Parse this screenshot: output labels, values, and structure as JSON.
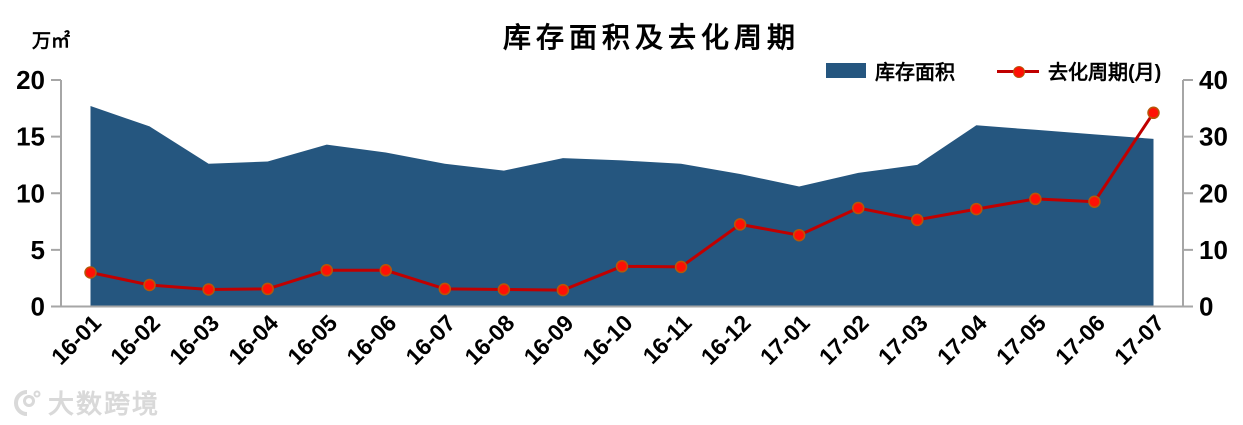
{
  "title": "库存面积及去化周期",
  "left_axis_unit": "万㎡",
  "legend": {
    "items": [
      {
        "label": "库存面积",
        "type": "area"
      },
      {
        "label": "去化周期(月)",
        "type": "line"
      }
    ]
  },
  "watermark": {
    "text": "大数跨境"
  },
  "colors": {
    "area": "#25567F",
    "line": "#C00000",
    "marker_fill": "#FF1005",
    "marker_stroke": "#B65708",
    "axis": "#A6A6A6",
    "watermark": "#D9D9D9"
  },
  "chart_data": {
    "type": "area+line combo",
    "title": "库存面积及去化周期",
    "categories": [
      "16-01",
      "16-02",
      "16-03",
      "16-04",
      "16-05",
      "16-06",
      "16-07",
      "16-08",
      "16-09",
      "16-10",
      "16-11",
      "16-12",
      "17-01",
      "17-02",
      "17-03",
      "17-04",
      "17-05",
      "17-06",
      "17-07"
    ],
    "series": [
      {
        "name": "库存面积",
        "type": "area",
        "axis": "left",
        "values": [
          17.7,
          15.9,
          12.6,
          12.8,
          14.3,
          13.6,
          12.6,
          12.0,
          13.1,
          12.9,
          12.6,
          11.7,
          10.6,
          11.8,
          12.5,
          16.0,
          15.6,
          15.2,
          14.8
        ]
      },
      {
        "name": "去化周期(月)",
        "type": "line",
        "axis": "right",
        "values": [
          6.0,
          3.8,
          3.0,
          3.1,
          6.4,
          6.4,
          3.1,
          3.0,
          2.9,
          7.1,
          7.0,
          14.5,
          12.6,
          17.4,
          15.3,
          17.2,
          19.0,
          18.5,
          34.2
        ]
      }
    ],
    "left_axis": {
      "unit": "万㎡",
      "range": [
        0,
        20
      ],
      "ticks": [
        0,
        5,
        10,
        15,
        20
      ]
    },
    "right_axis": {
      "range": [
        0,
        40
      ],
      "ticks": [
        0,
        10,
        20,
        30,
        40
      ]
    },
    "grid": false,
    "legend_position": "top-right",
    "x_label_rotation_deg": -45
  }
}
